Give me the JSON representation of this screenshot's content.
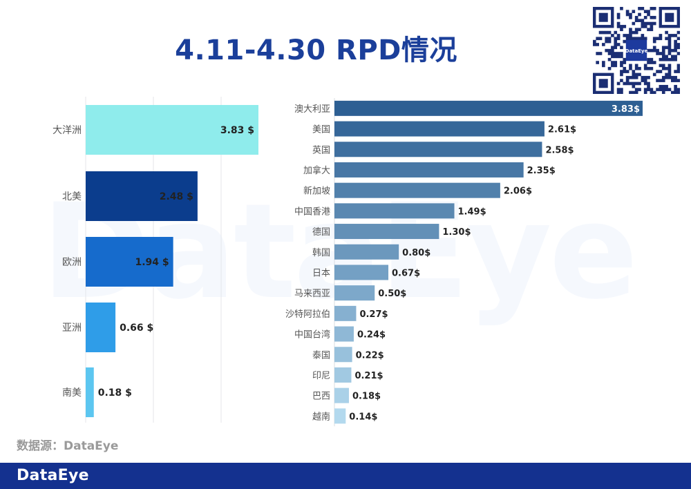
{
  "title": "4.11-4.30 RPD情况",
  "source": "数据源：DataEye",
  "footer_brand": "DataEye",
  "watermark_text": "DataEye",
  "qr_label": "DataEye",
  "colors": {
    "title": "#1b3f9a",
    "footer": "#14318f",
    "right_dark": "#2d5f93",
    "right_light": "#b3d9ee"
  },
  "chart_data": [
    {
      "type": "bar",
      "orientation": "horizontal",
      "title": "",
      "value_suffix": " $",
      "categories": [
        "大洋洲",
        "北美",
        "欧洲",
        "亚洲",
        "南美"
      ],
      "values": [
        3.83,
        2.48,
        1.94,
        0.66,
        0.18
      ],
      "colors": [
        "#8fecec",
        "#0b3d8d",
        "#166bcc",
        "#2f9de8",
        "#5cc6f0"
      ],
      "xlim": [
        0,
        4.0
      ],
      "grid": true
    },
    {
      "type": "bar",
      "orientation": "horizontal",
      "title": "",
      "value_suffix": "$",
      "categories": [
        "澳大利亚",
        "美国",
        "英国",
        "加拿大",
        "新加坡",
        "中国香港",
        "德国",
        "韩国",
        "日本",
        "马来西亚",
        "沙特阿拉伯",
        "中国台湾",
        "泰国",
        "印尼",
        "巴西",
        "越南"
      ],
      "values": [
        3.83,
        2.61,
        2.58,
        2.35,
        2.06,
        1.49,
        1.3,
        0.8,
        0.67,
        0.5,
        0.27,
        0.24,
        0.22,
        0.21,
        0.18,
        0.14
      ],
      "xlim": [
        0,
        3.83
      ],
      "grid": false
    }
  ]
}
